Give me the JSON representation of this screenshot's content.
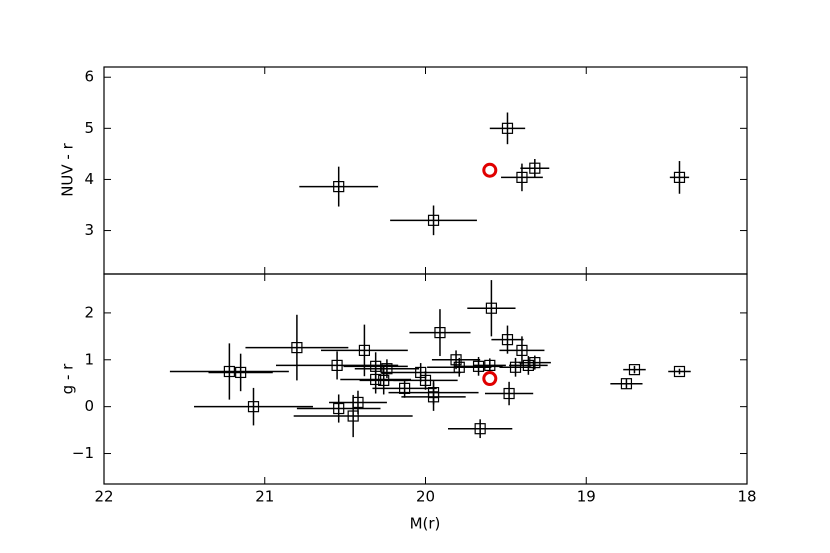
{
  "chart_data": [
    {
      "type": "scatter",
      "ylabel": "NUV - r",
      "color": "#000000",
      "x": [
        20.54,
        19.95,
        19.49,
        19.4,
        19.32,
        18.42
      ],
      "values": [
        3.86,
        3.2,
        5.0,
        4.04,
        4.22,
        4.04
      ],
      "xerr": [
        0.245,
        0.27,
        0.11,
        0.13,
        0.09,
        0.06
      ],
      "yerr": [
        0.39,
        0.29,
        0.31,
        0.27,
        0.18,
        0.32
      ],
      "highlight": {
        "x": 19.6,
        "y": 4.18,
        "color": "#e00000"
      },
      "xlim": [
        22,
        18
      ],
      "xticks": [
        22,
        21,
        20,
        19,
        18
      ],
      "ylim": [
        2.15,
        6.2
      ],
      "yticks": [
        3,
        4,
        5,
        6
      ]
    },
    {
      "type": "scatter",
      "ylabel": "g - r",
      "xlabel": "M(r)",
      "color": "#000000",
      "x": [
        21.22,
        21.15,
        21.07,
        20.8,
        20.55,
        20.54,
        20.45,
        20.42,
        20.38,
        20.31,
        20.31,
        20.26,
        20.24,
        20.13,
        20.03,
        20.0,
        19.95,
        19.95,
        19.91,
        19.81,
        19.79,
        19.67,
        19.66,
        19.6,
        19.59,
        19.49,
        19.48,
        19.44,
        19.4,
        19.36,
        19.32,
        18.75,
        18.7,
        18.42
      ],
      "values": [
        0.75,
        0.73,
        0.0,
        1.26,
        0.88,
        -0.04,
        -0.2,
        0.09,
        1.2,
        0.86,
        0.58,
        0.56,
        0.81,
        0.39,
        0.73,
        0.56,
        0.3,
        0.21,
        1.58,
        1.0,
        0.84,
        0.86,
        -0.47,
        0.88,
        2.1,
        1.43,
        0.28,
        0.84,
        1.2,
        0.88,
        0.94,
        0.49,
        0.79,
        0.75
      ],
      "xerr": [
        0.37,
        0.2,
        0.37,
        0.32,
        0.38,
        0.26,
        0.37,
        0.18,
        0.27,
        0.2,
        0.22,
        0.15,
        0.2,
        0.2,
        0.25,
        0.2,
        0.28,
        0.2,
        0.19,
        0.15,
        0.2,
        0.15,
        0.2,
        0.1,
        0.15,
        0.1,
        0.15,
        0.1,
        0.14,
        0.12,
        0.1,
        0.1,
        0.07,
        0.07
      ],
      "yerr": [
        0.6,
        0.4,
        0.4,
        0.7,
        0.3,
        0.3,
        0.45,
        0.25,
        0.55,
        0.3,
        0.3,
        0.3,
        0.2,
        0.2,
        0.2,
        0.2,
        0.25,
        0.3,
        0.5,
        0.2,
        0.2,
        0.2,
        0.2,
        0.15,
        0.6,
        0.3,
        0.25,
        0.2,
        0.3,
        0.2,
        0.15,
        0.1,
        0.08,
        0.06
      ],
      "highlight": {
        "x": 19.6,
        "y": 0.6,
        "color": "#e00000"
      },
      "xlim": [
        22,
        18
      ],
      "xticks": [
        22,
        21,
        20,
        19,
        18
      ],
      "ylim": [
        -1.65,
        2.83
      ],
      "yticks": [
        {
          "value": -1,
          "label": "−1"
        },
        0,
        1,
        2
      ]
    }
  ]
}
